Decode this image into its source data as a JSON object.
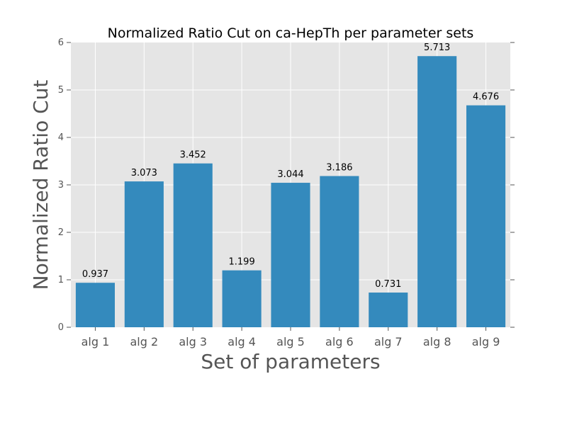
{
  "chart_data": {
    "type": "bar",
    "title": "Normalized Ratio Cut on ca-HepTh per parameter sets",
    "xlabel": "Set of parameters",
    "ylabel": "Normalized Ratio Cut",
    "categories": [
      "alg 1",
      "alg 2",
      "alg 3",
      "alg 4",
      "alg 5",
      "alg 6",
      "alg 7",
      "alg 8",
      "alg 9"
    ],
    "values": [
      0.937,
      3.073,
      3.452,
      1.199,
      3.044,
      3.186,
      0.731,
      5.713,
      4.676
    ],
    "data_labels": [
      "0.937",
      "3.073",
      "3.452",
      "1.199",
      "3.044",
      "3.186",
      "0.731",
      "5.713",
      "4.676"
    ],
    "ylim": [
      0,
      6
    ],
    "yticks": [
      "0",
      "1",
      "2",
      "3",
      "4",
      "5",
      "6"
    ],
    "grid": true,
    "colors": {
      "bar": "#348abd",
      "plot_bg": "#e5e5e5",
      "grid": "#ffffff"
    }
  }
}
